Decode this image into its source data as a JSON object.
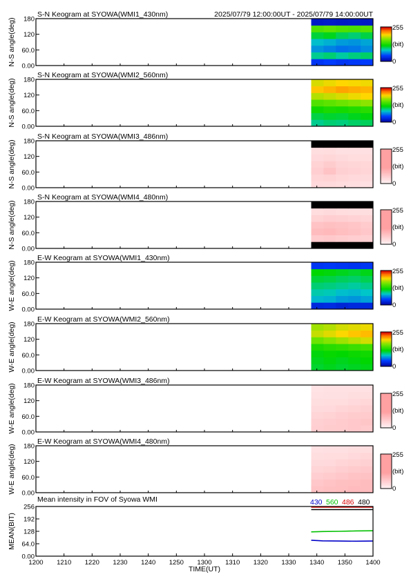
{
  "header": {
    "time_range": "2025/07/79 12:00:00UT - 2025/07/79 14:00:00UT"
  },
  "colors": {
    "blue_430": "#0000c8",
    "green_560": "#00c000",
    "red_486": "#d80000",
    "black_480": "#000000"
  },
  "chart_data": [
    {
      "type": "heatmap",
      "title": "S-N Keogram at SYOWA(WMI1_430nm)",
      "ylabel": "N-S angle(deg)",
      "y_ticks": [
        "180",
        "120",
        "60.0",
        "0.00"
      ],
      "ylim": [
        0,
        180
      ],
      "data_start": "13:38",
      "data_end": "14:00",
      "colorscale": "rainbow",
      "colorbar": {
        "max": "255",
        "unit": "(bit)",
        "min": "0"
      },
      "rows_low_to_high": [
        [
          40,
          45,
          40,
          42,
          44
        ],
        [
          95,
          100,
          92,
          98,
          102
        ],
        [
          70,
          65,
          60,
          62,
          68
        ],
        [
          82,
          78,
          72,
          70,
          75
        ],
        [
          110,
          115,
          105,
          100,
          108
        ],
        [
          150,
          155,
          150,
          148,
          152
        ],
        [
          20,
          22,
          20,
          21,
          20
        ]
      ]
    },
    {
      "type": "heatmap",
      "title": "S-N Keogram at SYOWA(WMI2_560nm)",
      "ylabel": "N-S angle(deg)",
      "y_ticks": [
        "180",
        "120",
        "60.0",
        "0.00"
      ],
      "ylim": [
        0,
        180
      ],
      "data_start": "13:38",
      "data_end": "14:00",
      "colorscale": "rainbow",
      "colorbar": {
        "max": "255",
        "unit": "(bit)",
        "min": "0"
      },
      "rows_low_to_high": [
        [
          95,
          100,
          98,
          102,
          104
        ],
        [
          108,
          112,
          110,
          115,
          118
        ],
        [
          125,
          130,
          128,
          132,
          135
        ],
        [
          150,
          155,
          160,
          165,
          170
        ],
        [
          180,
          185,
          190,
          195,
          200
        ],
        [
          205,
          210,
          215,
          212,
          210
        ],
        [
          190,
          195,
          200,
          198,
          196
        ]
      ]
    },
    {
      "type": "heatmap",
      "title": "S-N Keogram at SYOWA(WMI3_486nm)",
      "ylabel": "N-S angle(deg)",
      "y_ticks": [
        "180",
        "120",
        "60.0",
        "0.00"
      ],
      "ylim": [
        0,
        180
      ],
      "data_start": "13:38",
      "data_end": "14:00",
      "colorscale": "pink",
      "colorbar": {
        "max": "255",
        "unit": "(bit)",
        "min": "0"
      },
      "rows_low_to_high": [
        [
          40,
          38,
          35,
          32,
          30
        ],
        [
          45,
          50,
          42,
          40,
          38
        ],
        [
          55,
          70,
          52,
          48,
          45
        ],
        [
          50,
          58,
          46,
          44,
          42
        ],
        [
          40,
          42,
          38,
          36,
          35
        ],
        [
          32,
          34,
          30,
          30,
          30
        ],
        [
          0,
          0,
          0,
          0,
          0
        ]
      ]
    },
    {
      "type": "heatmap",
      "title": "S-N Keogram at SYOWA(WMI4_480nm)",
      "ylabel": "N-S angle(deg)",
      "y_ticks": [
        "180",
        "120",
        "60.0",
        "0.00"
      ],
      "ylim": [
        0,
        180
      ],
      "data_start": "13:38",
      "data_end": "14:00",
      "colorscale": "pink",
      "colorbar": {
        "max": "255",
        "unit": "(bit)",
        "min": "0"
      },
      "rows_low_to_high": [
        [
          0,
          0,
          0,
          0,
          0
        ],
        [
          60,
          62,
          58,
          55,
          52
        ],
        [
          80,
          85,
          78,
          72,
          65
        ],
        [
          70,
          75,
          72,
          68,
          60
        ],
        [
          50,
          55,
          52,
          48,
          45
        ],
        [
          35,
          38,
          35,
          33,
          32
        ],
        [
          0,
          0,
          0,
          0,
          0
        ]
      ]
    },
    {
      "type": "heatmap",
      "title": "E-W Keogram at SYOWA(WMI1_430nm)",
      "ylabel": "W-E angle(deg)",
      "y_ticks": [
        "180",
        "120",
        "60.0",
        "0.00"
      ],
      "ylim": [
        0,
        180
      ],
      "data_start": "13:38",
      "data_end": "14:00",
      "colorscale": "rainbow",
      "colorbar": {
        "max": "255",
        "unit": "(bit)",
        "min": "0"
      },
      "rows_low_to_high": [
        [
          30,
          32,
          28,
          30,
          30
        ],
        [
          80,
          78,
          72,
          70,
          74
        ],
        [
          90,
          88,
          82,
          80,
          84
        ],
        [
          100,
          98,
          95,
          92,
          96
        ],
        [
          110,
          108,
          104,
          102,
          106
        ],
        [
          120,
          118,
          115,
          112,
          116
        ],
        [
          40,
          42,
          40,
          38,
          40
        ]
      ]
    },
    {
      "type": "heatmap",
      "title": "E-W Keogram at SYOWA(WMI2_560nm)",
      "ylabel": "W-E angle(deg)",
      "y_ticks": [
        "180",
        "120",
        "60.0",
        "0.00"
      ],
      "ylim": [
        0,
        180
      ],
      "data_start": "13:38",
      "data_end": "14:00",
      "colorscale": "rainbow",
      "colorbar": {
        "max": "255",
        "unit": "(bit)",
        "min": "0"
      },
      "rows_low_to_high": [
        [
          112,
          115,
          112,
          114,
          116
        ],
        [
          115,
          118,
          115,
          118,
          120
        ],
        [
          118,
          122,
          120,
          124,
          126
        ],
        [
          130,
          135,
          138,
          142,
          145
        ],
        [
          160,
          168,
          175,
          182,
          188
        ],
        [
          185,
          192,
          200,
          205,
          208
        ],
        [
          175,
          180,
          188,
          192,
          195
        ]
      ]
    },
    {
      "type": "heatmap",
      "title": "E-W Keogram at SYOWA(WMI3_486nm)",
      "ylabel": "W-E angle(deg)",
      "y_ticks": [
        "180",
        "120",
        "60.0",
        "0.00"
      ],
      "ylim": [
        0,
        180
      ],
      "data_start": "13:38",
      "data_end": "14:00",
      "colorscale": "pink",
      "colorbar": {
        "max": "255",
        "unit": "(bit)",
        "min": "0"
      },
      "rows_low_to_high": [
        [
          55,
          58,
          60,
          62,
          60
        ],
        [
          52,
          56,
          60,
          64,
          66
        ],
        [
          45,
          50,
          55,
          58,
          60
        ],
        [
          38,
          40,
          45,
          50,
          52
        ],
        [
          32,
          34,
          36,
          40,
          42
        ],
        [
          28,
          30,
          30,
          32,
          32
        ],
        [
          26,
          28,
          28,
          28,
          28
        ]
      ]
    },
    {
      "type": "heatmap",
      "title": "E-W Keogram at SYOWA(WMI4_480nm)",
      "ylabel": "W-E angle(deg)",
      "y_ticks": [
        "180",
        "120",
        "60.0",
        "0.00"
      ],
      "ylim": [
        0,
        180
      ],
      "data_start": "13:38",
      "data_end": "14:00",
      "colorscale": "pink",
      "colorbar": {
        "max": "255",
        "unit": "(bit)",
        "min": "0"
      },
      "rows_low_to_high": [
        [
          70,
          75,
          78,
          82,
          80
        ],
        [
          65,
          70,
          75,
          78,
          80
        ],
        [
          55,
          60,
          65,
          70,
          72
        ],
        [
          45,
          50,
          55,
          60,
          62
        ],
        [
          38,
          40,
          45,
          50,
          52
        ],
        [
          32,
          34,
          36,
          40,
          42
        ],
        [
          28,
          30,
          30,
          32,
          32
        ]
      ]
    },
    {
      "type": "line",
      "title": "Mean intensity in FOV of Syowa WMI",
      "ylabel": "MEAN(BIT)",
      "xlabel": "TIME(UT)",
      "y_ticks": [
        "256",
        "192",
        "128",
        "64.0",
        "0.00"
      ],
      "ylim": [
        0,
        256
      ],
      "x_ticks": [
        "1200",
        "1210",
        "1220",
        "1230",
        "1240",
        "1250",
        "1300",
        "1310",
        "1320",
        "1330",
        "1340",
        "1350",
        "1400"
      ],
      "xlim": [
        "12:00",
        "14:00"
      ],
      "legend": [
        {
          "label": "430",
          "color": "#0000c8"
        },
        {
          "label": "560",
          "color": "#00c000"
        },
        {
          "label": "486",
          "color": "#d80000"
        },
        {
          "label": "480",
          "color": "#000000"
        }
      ],
      "series": [
        {
          "color": "#d80000",
          "points": [
            [
              "13:38",
              262
            ],
            [
              "13:45",
              262
            ],
            [
              "13:52",
              262
            ],
            [
              "14:00",
              262
            ]
          ]
        },
        {
          "color": "#000000",
          "points": [
            [
              "13:38",
              240
            ],
            [
              "13:45",
              240
            ],
            [
              "13:52",
              240
            ],
            [
              "14:00",
              240
            ]
          ]
        },
        {
          "color": "#00c000",
          "points": [
            [
              "13:38",
              125
            ],
            [
              "13:42",
              127
            ],
            [
              "13:48",
              128
            ],
            [
              "13:54",
              130
            ],
            [
              "14:00",
              131
            ]
          ]
        },
        {
          "color": "#0000c8",
          "points": [
            [
              "13:38",
              82
            ],
            [
              "13:42",
              79
            ],
            [
              "13:48",
              78
            ],
            [
              "13:54",
              77
            ],
            [
              "14:00",
              78
            ]
          ]
        }
      ]
    }
  ]
}
